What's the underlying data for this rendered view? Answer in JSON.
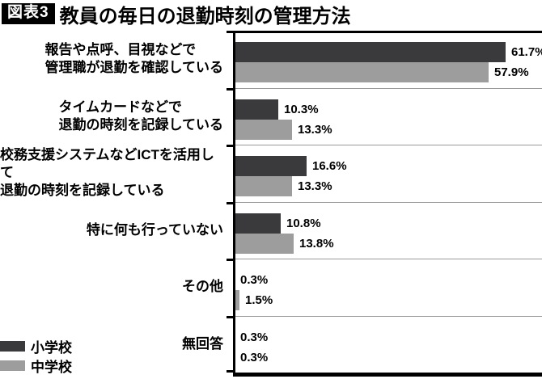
{
  "title": {
    "badge": "図表3",
    "text": "教員の毎日の退勤時刻の管理方法"
  },
  "legend": [
    {
      "label": "小学校",
      "color": "#3a3a3c"
    },
    {
      "label": "中学校",
      "color": "#9d9d9d"
    }
  ],
  "chart_data": {
    "type": "bar",
    "orientation": "horizontal",
    "title": "教員の毎日の退勤時刻の管理方法",
    "categories": [
      "報告や点呼、目視などで\n管理職が退勤を確認している",
      "タイムカードなどで\n退勤の時刻を記録している",
      "校務支援システムなどICTを活用して\n退勤の時刻を記録している",
      "特に何も行っていない",
      "その他",
      "無回答"
    ],
    "series": [
      {
        "name": "小学校",
        "color": "#3a3a3c",
        "values": [
          61.7,
          10.3,
          16.6,
          10.8,
          0.3,
          0.3
        ]
      },
      {
        "name": "中学校",
        "color": "#9d9d9d",
        "values": [
          57.9,
          13.3,
          13.3,
          13.8,
          1.5,
          0.3
        ]
      }
    ],
    "value_suffix": "%",
    "value_labels": true,
    "xlim": [
      0,
      70
    ],
    "grid": false,
    "legend_position": "bottom-left"
  }
}
